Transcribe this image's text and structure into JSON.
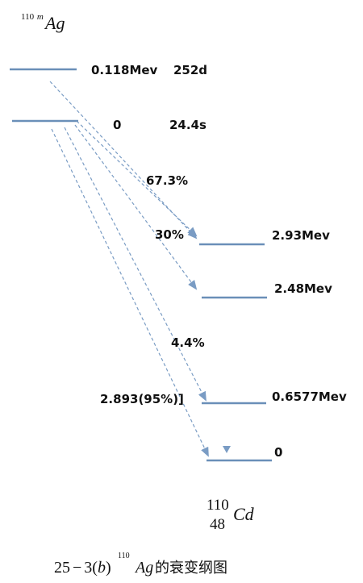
{
  "parent": {
    "mass": "110",
    "isomer": "m",
    "symbol": "Ag"
  },
  "daughter": {
    "mass": "110",
    "atomic_number": "48",
    "symbol": "Cd"
  },
  "parent_levels": [
    {
      "energy": "0.118Mev",
      "half_life": "252d"
    },
    {
      "energy": "0",
      "half_life": "24.4s"
    }
  ],
  "daughter_levels": [
    {
      "energy": "2.93Mev"
    },
    {
      "energy": "2.48Mev"
    },
    {
      "energy": "0.6577Mev"
    },
    {
      "energy": "0"
    }
  ],
  "branch_labels": {
    "b1": "67.3%",
    "b2": "30%",
    "b3": "4.4%",
    "b4": "2.893(95%)]"
  },
  "caption": {
    "prefix": "25",
    "minus": "−",
    "num": "3(",
    "italic_b": "b",
    "close": ")",
    "sup": "110",
    "sym": "Ag",
    "suffix": "的衰变纲图"
  },
  "colors": {
    "level_line": "#6a8fb8",
    "arrow": "#7a9cc4",
    "text": "#111111"
  }
}
